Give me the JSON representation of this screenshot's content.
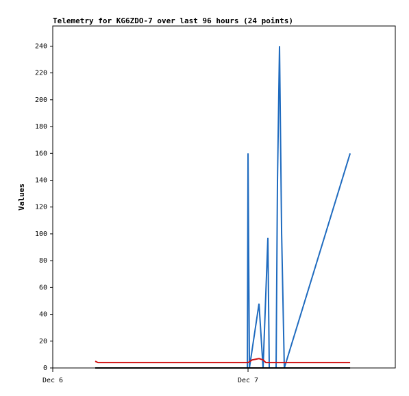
{
  "chart_data": {
    "type": "line",
    "title": "Telemetry for KG6ZDO-7 over last 96 hours (24 points)",
    "y_label": "Values",
    "xlim": [
      0,
      42.1
    ],
    "xticks": [
      {
        "value": 0,
        "label": "Dec 6"
      },
      {
        "value": 24,
        "label": "Dec 7"
      }
    ],
    "ylim": [
      0,
      255
    ],
    "yticks": [
      0,
      20,
      40,
      60,
      80,
      100,
      120,
      140,
      160,
      180,
      200,
      220,
      240
    ],
    "series": [
      {
        "color": "#1f6bbf",
        "x": [
          23.92,
          24.0,
          24.17,
          25.35,
          25.85,
          26.44,
          26.61,
          27.45,
          27.62,
          27.87,
          28.13,
          28.46,
          36.55
        ],
        "values": [
          0,
          160,
          0,
          48,
          0,
          97,
          0,
          0,
          140,
          240,
          100,
          0,
          160
        ]
      },
      {
        "color": "#d01010",
        "x": [
          5.22,
          5.56,
          24.0,
          24.51,
          25.35,
          25.85,
          26.19,
          36.55
        ],
        "values": [
          5,
          4,
          4,
          6,
          7,
          6,
          4,
          4
        ]
      },
      {
        "color": "#000000",
        "x": [
          5.22,
          36.55
        ],
        "values": [
          0,
          0
        ]
      }
    ]
  }
}
